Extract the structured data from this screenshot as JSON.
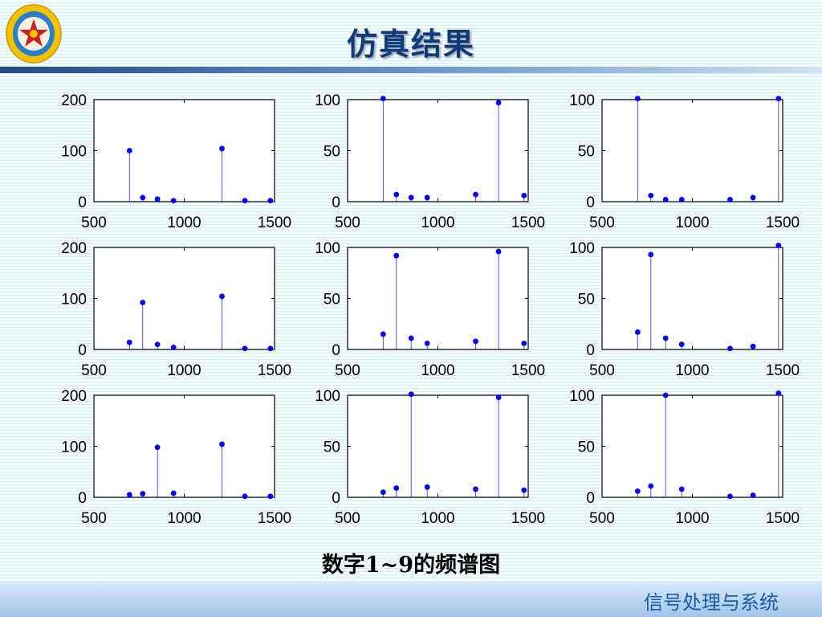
{
  "slide": {
    "title": "仿真结果",
    "caption": "数字1~9的频谱图",
    "footer": "信号处理与系统",
    "colors": {
      "title": "#0d3c78",
      "stem": "#0000ff",
      "header_bar": "#1e4a86",
      "footer_text": "#1d5aa6"
    }
  },
  "logo": {
    "icon": "university-emblem-icon",
    "colors": [
      "#f2c200",
      "#cc1f1f",
      "#2a7fc9"
    ]
  },
  "chart_data": [
    {
      "type": "stem",
      "digit": 1,
      "xlim": [
        500,
        1500
      ],
      "ylim": [
        0,
        200
      ],
      "xticks": [
        500,
        1000,
        1500
      ],
      "yticks": [
        0,
        100,
        200
      ],
      "x": [
        697,
        770,
        852,
        941,
        1209,
        1336,
        1477
      ],
      "values": [
        100,
        8,
        5,
        2,
        104,
        2,
        2
      ]
    },
    {
      "type": "stem",
      "digit": 2,
      "xlim": [
        500,
        1500
      ],
      "ylim": [
        0,
        100
      ],
      "xticks": [
        500,
        1000,
        1500
      ],
      "yticks": [
        0,
        50,
        100
      ],
      "x": [
        697,
        770,
        852,
        941,
        1209,
        1336,
        1477
      ],
      "values": [
        101,
        7,
        4,
        4,
        7,
        97,
        6
      ]
    },
    {
      "type": "stem",
      "digit": 3,
      "xlim": [
        500,
        1500
      ],
      "ylim": [
        0,
        100
      ],
      "xticks": [
        500,
        1000,
        1500
      ],
      "yticks": [
        0,
        50,
        100
      ],
      "x": [
        697,
        770,
        852,
        941,
        1209,
        1336,
        1477
      ],
      "values": [
        101,
        6,
        2,
        2,
        2,
        4,
        101
      ]
    },
    {
      "type": "stem",
      "digit": 4,
      "xlim": [
        500,
        1500
      ],
      "ylim": [
        0,
        200
      ],
      "xticks": [
        500,
        1000,
        1500
      ],
      "yticks": [
        0,
        100,
        200
      ],
      "x": [
        697,
        770,
        852,
        941,
        1209,
        1336,
        1477
      ],
      "values": [
        14,
        92,
        10,
        4,
        104,
        2,
        2
      ]
    },
    {
      "type": "stem",
      "digit": 5,
      "xlim": [
        500,
        1500
      ],
      "ylim": [
        0,
        100
      ],
      "xticks": [
        500,
        1000,
        1500
      ],
      "yticks": [
        0,
        50,
        100
      ],
      "x": [
        697,
        770,
        852,
        941,
        1209,
        1336,
        1477
      ],
      "values": [
        15,
        92,
        11,
        6,
        8,
        96,
        6
      ]
    },
    {
      "type": "stem",
      "digit": 6,
      "xlim": [
        500,
        1500
      ],
      "ylim": [
        0,
        100
      ],
      "xticks": [
        500,
        1000,
        1500
      ],
      "yticks": [
        0,
        50,
        100
      ],
      "x": [
        697,
        770,
        852,
        941,
        1209,
        1336,
        1477
      ],
      "values": [
        17,
        93,
        11,
        5,
        1,
        3,
        102
      ]
    },
    {
      "type": "stem",
      "digit": 7,
      "xlim": [
        500,
        1500
      ],
      "ylim": [
        0,
        200
      ],
      "xticks": [
        500,
        1000,
        1500
      ],
      "yticks": [
        0,
        100,
        200
      ],
      "x": [
        697,
        770,
        852,
        941,
        1209,
        1336,
        1477
      ],
      "values": [
        5,
        7,
        98,
        8,
        104,
        2,
        2
      ]
    },
    {
      "type": "stem",
      "digit": 8,
      "xlim": [
        500,
        1500
      ],
      "ylim": [
        0,
        100
      ],
      "xticks": [
        500,
        1000,
        1500
      ],
      "yticks": [
        0,
        50,
        100
      ],
      "x": [
        697,
        770,
        852,
        941,
        1209,
        1336,
        1477
      ],
      "values": [
        5,
        9,
        101,
        10,
        8,
        98,
        7
      ]
    },
    {
      "type": "stem",
      "digit": 9,
      "xlim": [
        500,
        1500
      ],
      "ylim": [
        0,
        100
      ],
      "xticks": [
        500,
        1000,
        1500
      ],
      "yticks": [
        0,
        50,
        100
      ],
      "x": [
        697,
        770,
        852,
        941,
        1209,
        1336,
        1477
      ],
      "values": [
        6,
        11,
        100,
        8,
        1,
        2,
        102
      ]
    }
  ]
}
